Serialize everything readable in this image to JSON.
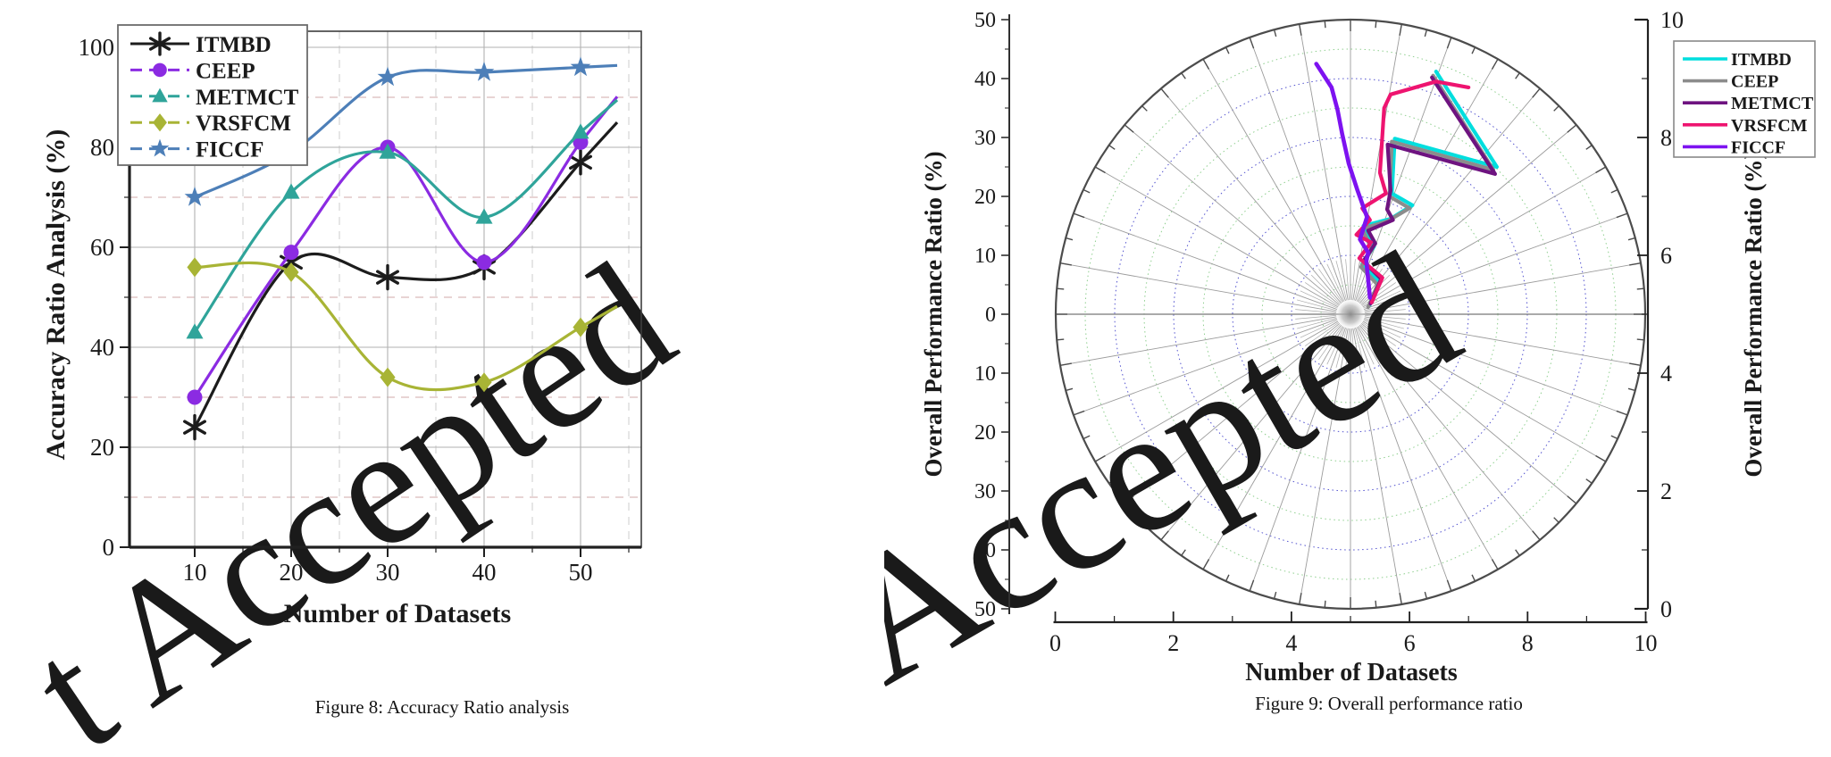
{
  "watermarks": {
    "left": "t Accepted",
    "right": "Accepted"
  },
  "chart_data": [
    {
      "id": "figure-8",
      "type": "line",
      "title": "Figure 8: Accuracy Ratio analysis",
      "xlabel": "Number of Datasets",
      "ylabel": "Accuracy Ratio Analysis (%)",
      "x": [
        10,
        20,
        30,
        40,
        50
      ],
      "x_ticks": [
        10,
        20,
        30,
        40,
        50
      ],
      "x_minor_ticks": [
        15,
        25,
        35,
        45,
        55
      ],
      "y_ticks": [
        0,
        20,
        40,
        60,
        80,
        100
      ],
      "y_minor_ticks": [
        10,
        30,
        50,
        70,
        90
      ],
      "xlim": [
        5,
        57
      ],
      "ylim": [
        0,
        105
      ],
      "grid": "solid gray majors, dashed minors",
      "legend_position": "top-left",
      "series": [
        {
          "name": "ITMBD",
          "color": "#1c1c1c",
          "marker": "asterisk",
          "values": [
            24,
            57,
            54,
            56,
            77
          ]
        },
        {
          "name": "CEEP",
          "color": "#8b2be2",
          "marker": "circle",
          "values": [
            30,
            59,
            80,
            57,
            81
          ]
        },
        {
          "name": "METMCT",
          "color": "#2fa49a",
          "marker": "triangle",
          "values": [
            43,
            71,
            79,
            66,
            83
          ]
        },
        {
          "name": "VRSFCM",
          "color": "#a8b435",
          "marker": "diamond",
          "values": [
            56,
            55,
            34,
            33,
            44
          ]
        },
        {
          "name": "FICCF",
          "color": "#4d7fb8",
          "marker": "star",
          "values": [
            70,
            79,
            94,
            95,
            96
          ]
        }
      ]
    },
    {
      "id": "figure-9",
      "type": "polar-line",
      "title": "Figure 9: Overall performance ratio",
      "xlabel": "Number of Datasets",
      "ylabel_left": "Overall Performance Ratio (%)",
      "ylabel_right": "Overall Performance Ratio (%)",
      "x_ticks": [
        0,
        2,
        4,
        6,
        8,
        10
      ],
      "right_ticks": [
        0,
        2,
        4,
        6,
        8,
        10
      ],
      "left_tick_labels": [
        50,
        40,
        30,
        20,
        10,
        0,
        10,
        20,
        30,
        40,
        50
      ],
      "polar": {
        "center": [
          5,
          5
        ],
        "radius": 5,
        "ring_step": 0.5,
        "spokes_deg": 10
      },
      "note": "series polylines are digitized approximations, coordinates in axis units (0-10 on both axes)",
      "series": [
        {
          "name": "ITMBD",
          "color": "#00dede",
          "points": [
            [
              5.32,
              5.15
            ],
            [
              5.5,
              5.55
            ],
            [
              5.2,
              5.85
            ],
            [
              5.4,
              6.15
            ],
            [
              5.22,
              6.5
            ],
            [
              5.68,
              6.62
            ],
            [
              6.05,
              6.85
            ],
            [
              5.7,
              7.05
            ],
            [
              5.75,
              7.98
            ],
            [
              7.48,
              7.5
            ],
            [
              6.45,
              9.12
            ]
          ]
        },
        {
          "name": "CEEP",
          "color": "#8c8c8c",
          "points": [
            [
              5.3,
              5.12
            ],
            [
              5.46,
              5.5
            ],
            [
              5.18,
              5.8
            ],
            [
              5.36,
              6.1
            ],
            [
              5.2,
              6.45
            ],
            [
              5.63,
              6.58
            ],
            [
              6.0,
              6.8
            ],
            [
              5.66,
              7.0
            ],
            [
              5.7,
              7.93
            ],
            [
              7.42,
              7.45
            ],
            [
              6.4,
              9.05
            ]
          ]
        },
        {
          "name": "METMCT",
          "color": "#6e1380",
          "points": [
            [
              5.34,
              5.18
            ],
            [
              5.52,
              5.6
            ],
            [
              5.22,
              5.9
            ],
            [
              5.42,
              6.2
            ],
            [
              5.3,
              6.42
            ],
            [
              5.72,
              6.6
            ],
            [
              5.62,
              6.78
            ],
            [
              5.68,
              7.1
            ],
            [
              5.63,
              7.88
            ],
            [
              7.45,
              7.38
            ],
            [
              6.38,
              9.02
            ]
          ]
        },
        {
          "name": "VRSFCM",
          "color": "#ee1470",
          "points": [
            [
              5.36,
              5.2
            ],
            [
              5.54,
              5.62
            ],
            [
              5.15,
              5.95
            ],
            [
              5.35,
              6.22
            ],
            [
              5.1,
              6.35
            ],
            [
              5.33,
              6.6
            ],
            [
              5.2,
              6.8
            ],
            [
              5.6,
              7.05
            ],
            [
              5.5,
              7.4
            ],
            [
              5.57,
              8.5
            ],
            [
              5.68,
              8.73
            ],
            [
              6.45,
              8.95
            ],
            [
              7.0,
              8.85
            ]
          ]
        },
        {
          "name": "FICCF",
          "color": "#7d12f0",
          "points": [
            [
              5.33,
              5.28
            ],
            [
              5.27,
              5.9
            ],
            [
              5.3,
              6.05
            ],
            [
              5.16,
              6.27
            ],
            [
              5.28,
              6.65
            ],
            [
              5.12,
              7.1
            ],
            [
              4.97,
              7.56
            ],
            [
              4.86,
              8.06
            ],
            [
              4.78,
              8.47
            ],
            [
              4.68,
              8.85
            ],
            [
              4.42,
              9.25
            ]
          ]
        }
      ]
    }
  ]
}
